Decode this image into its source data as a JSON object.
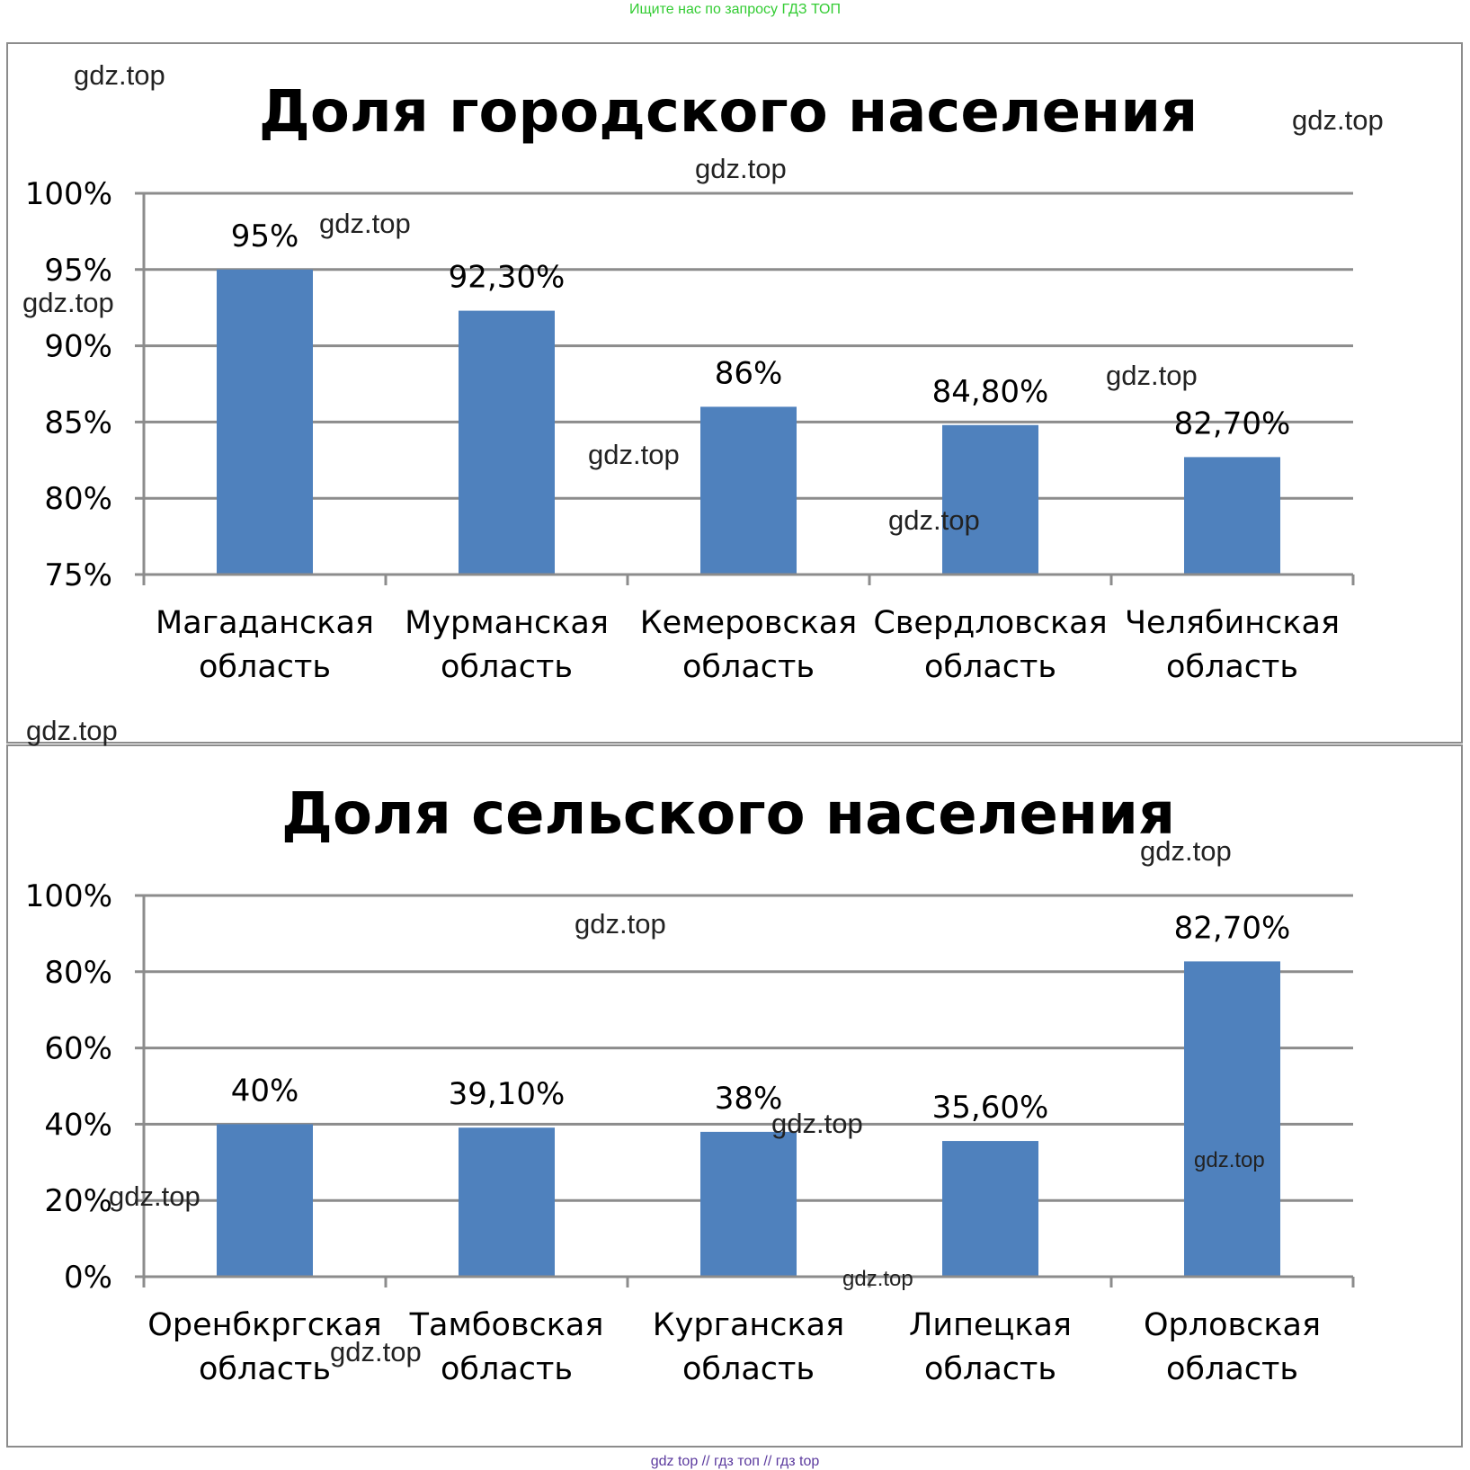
{
  "header_banner": "Ищите нас по запросу ГДЗ ТОП",
  "footer_banner": [
    "gdz top",
    "//",
    "гдз топ",
    "//",
    "гдз top"
  ],
  "watermark_text": "gdz.top",
  "colors": {
    "bar": "#4f81bd",
    "grid": "#8c8c8c",
    "axis": "#8c8c8c",
    "banner_top": "#33cc33",
    "banner_bottom": "#5b3a9e"
  },
  "chart_data": [
    {
      "type": "bar",
      "title": "Доля городского населения",
      "categories": [
        [
          "Магаданская",
          "область"
        ],
        [
          "Мурманская",
          "область"
        ],
        [
          "Кемеровская",
          "область"
        ],
        [
          "Свердловская",
          "область"
        ],
        [
          "Челябинская",
          "область"
        ]
      ],
      "values": [
        95,
        92.3,
        86,
        84.8,
        82.7
      ],
      "value_labels": [
        "95%",
        "92,30%",
        "86%",
        "84,80%",
        "82,70%"
      ],
      "ylim": [
        75,
        100
      ],
      "ticks": [
        75,
        80,
        85,
        90,
        95,
        100
      ],
      "tick_labels": [
        "75%",
        "80%",
        "85%",
        "90%",
        "95%",
        "100%"
      ],
      "grid": true,
      "xlabel": "",
      "ylabel": ""
    },
    {
      "type": "bar",
      "title": "Доля сельского  населения",
      "categories": [
        [
          "Оренбкргская",
          "область"
        ],
        [
          "Тамбовская",
          "область"
        ],
        [
          "Курганская",
          "область"
        ],
        [
          "Липецкая",
          "область"
        ],
        [
          "Орловская",
          "область"
        ]
      ],
      "values": [
        40,
        39.1,
        38,
        35.6,
        82.7
      ],
      "value_labels": [
        "40%",
        "39,10%",
        "38%",
        "35,60%",
        "82,70%"
      ],
      "ylim": [
        0,
        100
      ],
      "ticks": [
        0,
        20,
        40,
        60,
        80,
        100
      ],
      "tick_labels": [
        "0%",
        "20%",
        "40%",
        "60%",
        "80%",
        "100%"
      ],
      "grid": true,
      "xlabel": "",
      "ylabel": ""
    }
  ]
}
